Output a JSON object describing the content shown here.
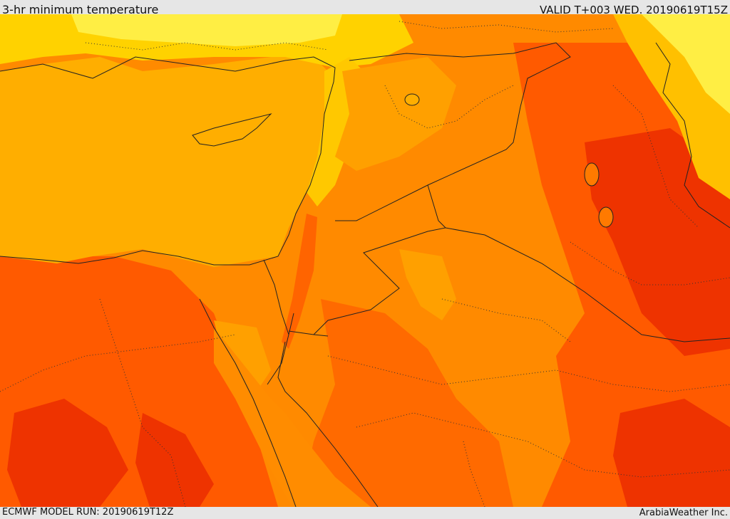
{
  "header": {
    "title": "3-hr minimum temperature",
    "valid": "VALID T+003 WED. 20190619T15Z"
  },
  "footer": {
    "model_run": "ECMWF MODEL RUN: 20190619T12Z",
    "credit": "ArabiaWeather Inc."
  },
  "map": {
    "region": "Eastern Mediterranean / Levant",
    "colors": {
      "light_yellow": "#ffff66",
      "yellow": "#ffdd00",
      "gold": "#ffbb00",
      "amber": "#ffae00",
      "orange": "#ff8800",
      "dark_orange": "#ff6600",
      "red_orange": "#ff4a00",
      "red": "#ee2200",
      "border_line": "#222222"
    }
  }
}
